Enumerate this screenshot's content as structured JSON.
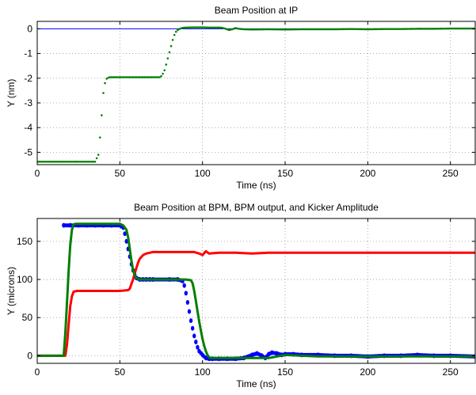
{
  "chart_data": [
    {
      "type": "scatter",
      "title": "Beam Position at IP",
      "xlabel": "Time (ns)",
      "ylabel": "Y (nm)",
      "xlim": [
        0,
        265
      ],
      "ylim": [
        -5.5,
        0.3
      ],
      "xticks": [
        0,
        50,
        100,
        150,
        200,
        250
      ],
      "yticks": [
        0,
        -1,
        -2,
        -3,
        -4,
        -5
      ],
      "grid": true,
      "reference_line": {
        "y": 0,
        "color": "#0000ff"
      },
      "series": [
        {
          "color": "#007f00",
          "x": [
            0,
            35,
            37,
            38,
            39,
            40,
            41,
            42,
            43,
            44,
            46,
            50,
            55,
            60,
            65,
            70,
            74,
            75,
            76,
            77,
            78,
            79,
            80,
            81,
            82,
            83,
            84,
            85,
            86,
            87,
            88,
            90,
            95,
            100,
            105,
            110,
            112,
            114,
            116,
            118,
            120,
            122,
            125,
            130,
            140,
            150,
            160,
            170,
            180,
            190,
            200,
            210,
            220,
            230,
            240,
            250,
            265
          ],
          "y": [
            -5.38,
            -5.38,
            -5.1,
            -4.4,
            -3.5,
            -2.6,
            -2.2,
            -2.02,
            -1.98,
            -1.96,
            -1.96,
            -1.96,
            -1.96,
            -1.96,
            -1.96,
            -1.96,
            -1.96,
            -1.92,
            -1.82,
            -1.68,
            -1.45,
            -1.2,
            -0.95,
            -0.7,
            -0.45,
            -0.25,
            -0.12,
            -0.05,
            -0.01,
            0.02,
            0.04,
            0.05,
            0.06,
            0.06,
            0.05,
            0.05,
            0.04,
            0.0,
            -0.05,
            -0.02,
            0.03,
            0.0,
            -0.02,
            -0.03,
            -0.02,
            -0.03,
            -0.02,
            -0.02,
            -0.02,
            -0.01,
            -0.02,
            -0.01,
            -0.01,
            0.0,
            0.0,
            0.01,
            0.01
          ]
        }
      ]
    },
    {
      "type": "line",
      "title": "Beam Position at BPM, BPM output, and Kicker Amplitude",
      "xlabel": "Time (ns)",
      "ylabel": "Y (microns)",
      "xlim": [
        0,
        265
      ],
      "ylim": [
        -10,
        180
      ],
      "xticks": [
        0,
        50,
        100,
        150,
        200,
        250
      ],
      "yticks": [
        0,
        50,
        100,
        150
      ],
      "grid": true,
      "series": [
        {
          "color": "#0000ff",
          "style": "dots",
          "x": [
            16,
            20,
            25,
            30,
            35,
            40,
            45,
            50,
            52,
            53,
            54,
            55,
            56,
            57,
            58,
            59,
            60,
            62,
            64,
            66,
            68,
            70,
            80,
            85,
            88,
            89,
            90,
            91,
            92,
            93,
            94,
            95,
            96,
            97,
            98,
            100,
            102,
            104,
            106,
            110,
            115,
            120,
            125,
            130,
            133,
            136,
            138,
            140,
            142,
            145,
            148,
            150,
            155,
            160,
            170,
            180,
            190,
            200,
            210,
            220,
            230,
            240,
            250,
            265
          ],
          "y": [
            171,
            171,
            171,
            171,
            171,
            171,
            171,
            171,
            168,
            160,
            150,
            140,
            130,
            120,
            112,
            106,
            102,
            100,
            100,
            100,
            100,
            100,
            100,
            100,
            98,
            92,
            82,
            70,
            58,
            46,
            36,
            26,
            18,
            11,
            6,
            1,
            -3,
            -4,
            -4,
            -4,
            -4,
            -4,
            -3,
            1,
            3,
            0,
            -3,
            2,
            4,
            3,
            1,
            2,
            2,
            1,
            1,
            0,
            0,
            -1,
            0,
            0,
            1,
            0,
            0,
            -1
          ]
        },
        {
          "color": "#ff0000",
          "x": [
            0,
            17,
            18,
            19,
            20,
            21,
            22,
            24,
            30,
            40,
            50,
            55,
            56,
            57,
            58,
            59,
            60,
            61,
            62,
            64,
            66,
            68,
            70,
            75,
            80,
            90,
            95,
            98,
            100,
            102,
            104,
            110,
            120,
            130,
            140,
            150,
            200,
            265
          ],
          "y": [
            0,
            0,
            15,
            40,
            65,
            78,
            84,
            85,
            85,
            85,
            85,
            86,
            88,
            94,
            100,
            108,
            115,
            122,
            127,
            132,
            134,
            135,
            136,
            136,
            136,
            136,
            136,
            134,
            132,
            137,
            134,
            135,
            135,
            134,
            135,
            135,
            135,
            135
          ]
        },
        {
          "color": "#007f00",
          "x": [
            0,
            16,
            17,
            18,
            19,
            20,
            21,
            22,
            23,
            24,
            30,
            40,
            50,
            52,
            54,
            55,
            56,
            57,
            58,
            59,
            60,
            62,
            64,
            70,
            80,
            90,
            93,
            94,
            95,
            96,
            97,
            98,
            99,
            100,
            101,
            102,
            103,
            104,
            105,
            106,
            108,
            110,
            120,
            130,
            140,
            150,
            160,
            170,
            180,
            190,
            200,
            210,
            220,
            230,
            240,
            250,
            265
          ],
          "y": [
            0,
            0,
            30,
            70,
            110,
            145,
            165,
            172,
            173,
            173,
            173,
            173,
            173,
            171,
            165,
            155,
            140,
            125,
            112,
            106,
            102,
            100,
            100,
            100,
            100,
            100,
            99,
            95,
            85,
            72,
            58,
            45,
            33,
            22,
            13,
            6,
            1,
            -2,
            -3,
            -3,
            -3,
            -3,
            -3,
            -3,
            -3,
            1,
            0,
            -1,
            -1,
            -1,
            -1,
            -1,
            -1,
            -1,
            -1,
            -1,
            -1
          ]
        }
      ]
    }
  ]
}
